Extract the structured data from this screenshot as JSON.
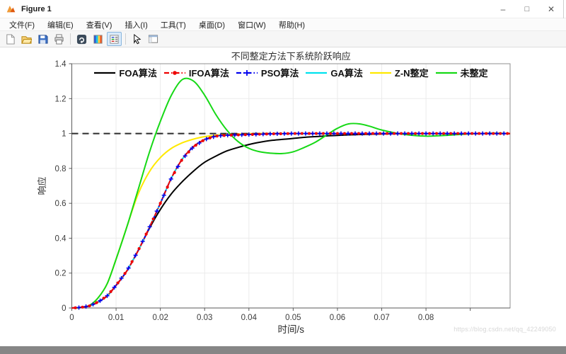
{
  "window": {
    "title": "Figure 1",
    "minimize_glyph": "–",
    "maximize_glyph": "□",
    "close_glyph": "✕"
  },
  "menu_bar": {
    "items": [
      "文件(F)",
      "编辑(E)",
      "查看(V)",
      "插入(I)",
      "工具(T)",
      "桌面(D)",
      "窗口(W)",
      "帮助(H)"
    ]
  },
  "toolbar": {
    "icons": [
      {
        "name": "new-figure-icon",
        "active": false
      },
      {
        "name": "open-file-icon",
        "active": false
      },
      {
        "name": "save-figure-icon",
        "active": false
      },
      {
        "name": "print-figure-icon",
        "active": false
      },
      {
        "name": "separator"
      },
      {
        "name": "link-plot-icon",
        "active": false
      },
      {
        "name": "insert-colorbar-icon",
        "active": false
      },
      {
        "name": "insert-legend-icon",
        "active": true
      },
      {
        "name": "separator"
      },
      {
        "name": "edit-plot-icon",
        "active": false
      },
      {
        "name": "show-plot-tools-icon",
        "active": false
      }
    ]
  },
  "watermark": "https://blog.csdn.net/qq_42249050",
  "chart_data": {
    "type": "line",
    "title": "不同整定方法下系统阶跃响应",
    "xlabel": "时间/s",
    "ylabel": "响应",
    "xlim": [
      0,
      0.099
    ],
    "ylim": [
      0,
      1.4
    ],
    "grid": true,
    "legend_position": "top-inside-horizontal",
    "xticks": [
      0,
      0.01,
      0.02,
      0.03,
      0.04,
      0.05,
      0.06,
      0.07,
      0.08,
      0.09
    ],
    "xtick_labels": [
      "0",
      "0.01",
      "0.02",
      "0.03",
      "0.04",
      "0.05",
      "0.06",
      "0.07",
      "0.08",
      ""
    ],
    "yticks": [
      0,
      0.2,
      0.4,
      0.6,
      0.8,
      1,
      1.2,
      1.4
    ],
    "ytick_labels": [
      "0",
      "0.2",
      "0.4",
      "0.6",
      "0.8",
      "1",
      "1.2",
      "1.4"
    ],
    "reference_line": {
      "y": 1,
      "style": "dashed",
      "color": "#2b2b2b"
    },
    "x": [
      0,
      0.002,
      0.004,
      0.006,
      0.008,
      0.01,
      0.0125,
      0.015,
      0.0175,
      0.02,
      0.0225,
      0.025,
      0.0275,
      0.03,
      0.0325,
      0.035,
      0.0375,
      0.04,
      0.0425,
      0.045,
      0.0475,
      0.05,
      0.0525,
      0.055,
      0.0575,
      0.06,
      0.0625,
      0.065,
      0.0675,
      0.07,
      0.075,
      0.08,
      0.085,
      0.09,
      0.095,
      0.099
    ],
    "series": [
      {
        "name": "FOA算法",
        "color": "#000000",
        "style": "solid",
        "marker": "none",
        "y": [
          0,
          0.003,
          0.012,
          0.035,
          0.07,
          0.13,
          0.215,
          0.33,
          0.455,
          0.565,
          0.655,
          0.725,
          0.785,
          0.835,
          0.87,
          0.9,
          0.92,
          0.937,
          0.95,
          0.96,
          0.966,
          0.972,
          0.978,
          0.982,
          0.986,
          0.989,
          0.992,
          0.994,
          0.996,
          0.997,
          0.999,
          1,
          1,
          1,
          1,
          1
        ]
      },
      {
        "name": "IFOA算法",
        "color": "#ee0000",
        "style": "dash-dot",
        "marker": "dot",
        "y": [
          0,
          0.003,
          0.012,
          0.035,
          0.07,
          0.13,
          0.215,
          0.33,
          0.46,
          0.6,
          0.745,
          0.855,
          0.925,
          0.965,
          0.985,
          0.99,
          0.992,
          0.994,
          0.996,
          0.998,
          0.999,
          1,
          1,
          1,
          1,
          1,
          1,
          1,
          1,
          1,
          1,
          1,
          1,
          1,
          1,
          1
        ]
      },
      {
        "name": "PSO算法",
        "color": "#0000ee",
        "style": "dash-dot",
        "marker": "plus",
        "y": [
          0,
          0.003,
          0.012,
          0.035,
          0.07,
          0.13,
          0.215,
          0.33,
          0.46,
          0.6,
          0.745,
          0.855,
          0.925,
          0.965,
          0.985,
          0.99,
          0.992,
          0.994,
          0.996,
          0.998,
          0.999,
          1,
          1,
          1,
          1,
          1,
          1,
          1,
          1,
          1,
          1,
          1,
          1,
          1,
          1,
          1
        ]
      },
      {
        "name": "GA算法",
        "color": "#00e2ee",
        "style": "solid",
        "marker": "none",
        "y": [
          0,
          0.003,
          0.012,
          0.035,
          0.07,
          0.13,
          0.215,
          0.33,
          0.46,
          0.6,
          0.745,
          0.855,
          0.925,
          0.965,
          0.985,
          0.99,
          0.992,
          0.994,
          0.996,
          0.998,
          0.999,
          1,
          1,
          1,
          1,
          1,
          1,
          1,
          1,
          1,
          1,
          1,
          1,
          1,
          1,
          1
        ]
      },
      {
        "name": "Z-N整定",
        "color": "#ffe900",
        "style": "solid",
        "marker": "none",
        "y": [
          0,
          0.002,
          0.015,
          0.06,
          0.14,
          0.28,
          0.47,
          0.655,
          0.78,
          0.862,
          0.915,
          0.947,
          0.968,
          0.982,
          0.99,
          0.995,
          0.997,
          0.999,
          1,
          1,
          1,
          1,
          1,
          1,
          1,
          1,
          1,
          1,
          1,
          1,
          1,
          1,
          1,
          1,
          1,
          1
        ]
      },
      {
        "name": "未整定",
        "color": "#16d916",
        "style": "solid",
        "marker": "none",
        "y": [
          0,
          0.002,
          0.015,
          0.06,
          0.14,
          0.28,
          0.47,
          0.68,
          0.89,
          1.07,
          1.22,
          1.31,
          1.3,
          1.22,
          1.11,
          1.02,
          0.955,
          0.915,
          0.895,
          0.887,
          0.885,
          0.895,
          0.92,
          0.95,
          0.99,
          1.03,
          1.055,
          1.055,
          1.04,
          1.02,
          0.995,
          0.985,
          0.99,
          0.998,
          1.002,
          1
        ]
      }
    ]
  }
}
